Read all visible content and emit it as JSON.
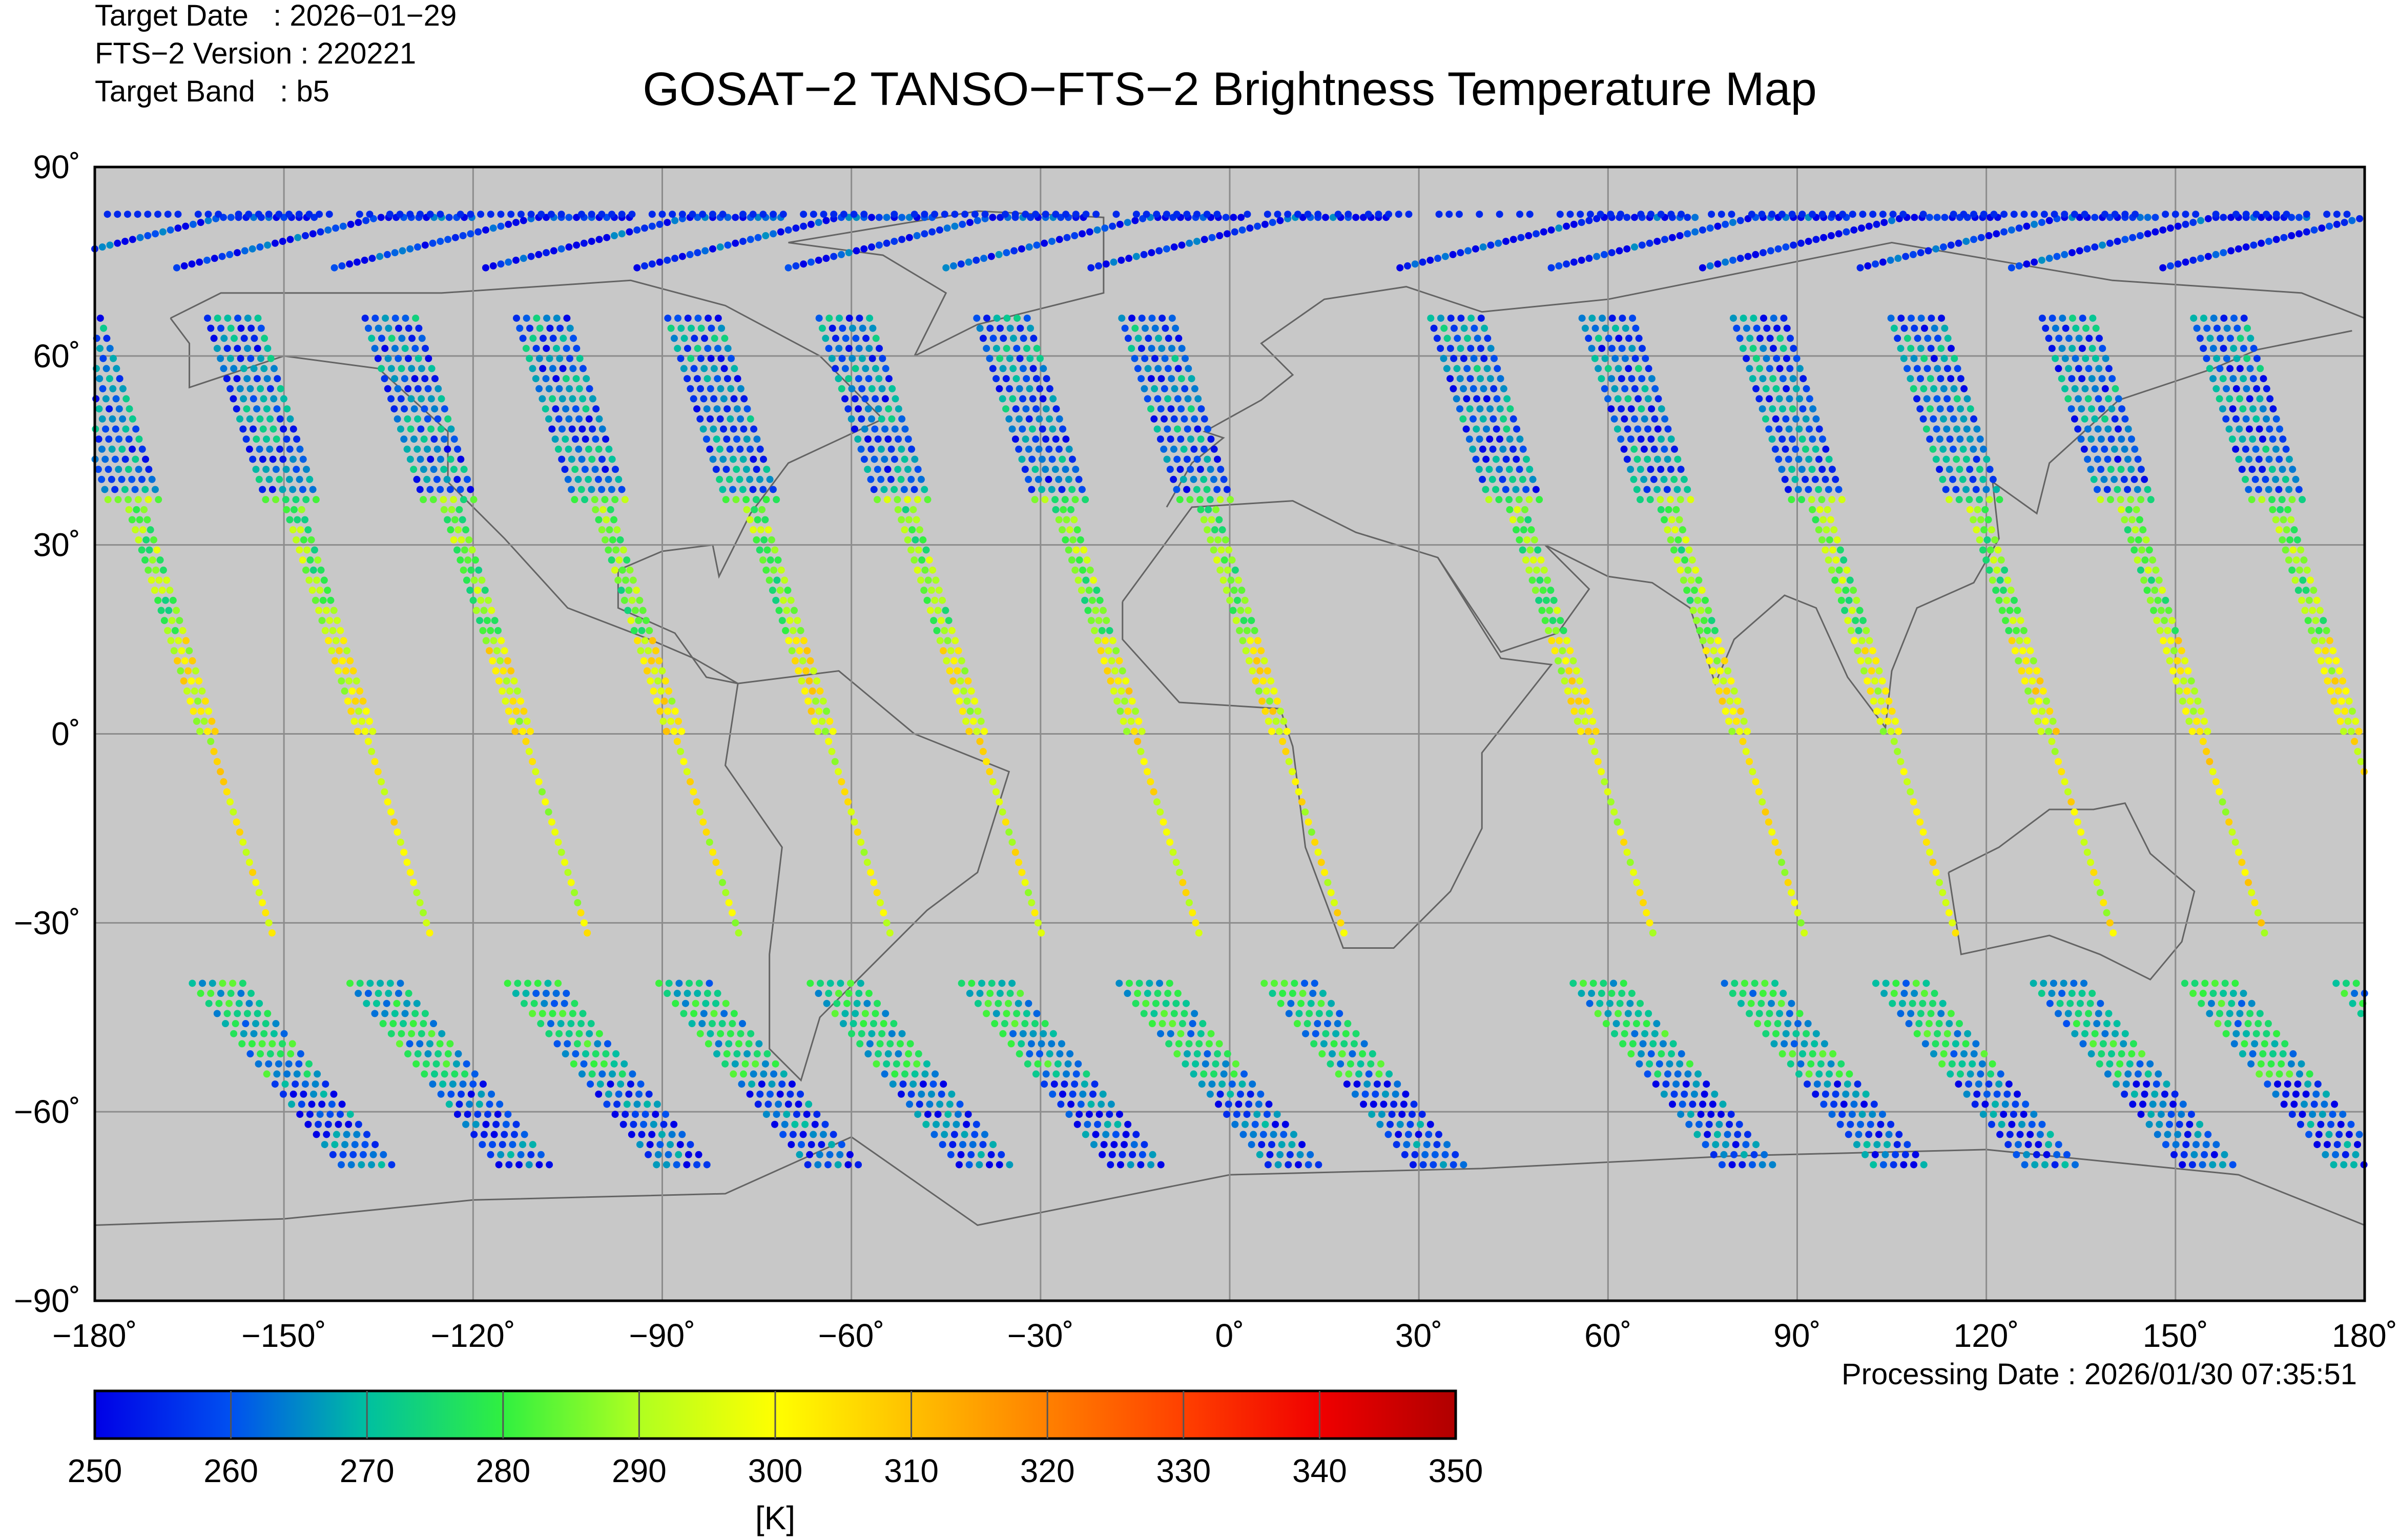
{
  "header": {
    "target_date": "Target Date   : 2026−01−29",
    "version": "FTS−2 Version : 220221",
    "target_band": "Target Band   : b5"
  },
  "processing_date": "Processing Date : 2026/01/30 07:35:51",
  "colors": {
    "ocean_land_bg": "#c8c8c8",
    "grid": "#8c8c8c",
    "coast": "#646464"
  },
  "chart_data": {
    "type": "scatter",
    "title": "GOSAT−2 TANSO−FTS−2 Brightness Temperature Map",
    "xlabel": "",
    "ylabel": "",
    "xlim": [
      -180,
      180
    ],
    "ylim": [
      -90,
      90
    ],
    "grid": true,
    "x_ticks": [
      "−180˚",
      "−150˚",
      "−120˚",
      "−90˚",
      "−60˚",
      "−30˚",
      "0˚",
      "30˚",
      "60˚",
      "90˚",
      "120˚",
      "150˚",
      "180˚"
    ],
    "y_ticks": [
      "90˚",
      "60˚",
      "30˚",
      "0˚",
      "−30˚",
      "−60˚",
      "−90˚"
    ],
    "tracks_equator_lon": [
      -162,
      -137,
      -112,
      -88,
      -64,
      -40,
      -15,
      8,
      57,
      81,
      105,
      130,
      154,
      178
    ],
    "temperature_by_zone_K": {
      "polar_north": 254,
      "north_mid": 262,
      "subtropics": 285,
      "tropics": 298,
      "south_mid": 272,
      "south_high": 258
    },
    "colorbar": {
      "label": "[K]",
      "range": [
        250,
        350
      ],
      "ticks": [
        "250",
        "260",
        "270",
        "280",
        "290",
        "300",
        "310",
        "320",
        "330",
        "340",
        "350"
      ],
      "stops": [
        "#0000e6",
        "#0050f0",
        "#00c0a0",
        "#30f040",
        "#b0ff20",
        "#ffff00",
        "#ffc000",
        "#ff8000",
        "#ff4000",
        "#f00000",
        "#b00000"
      ]
    }
  }
}
